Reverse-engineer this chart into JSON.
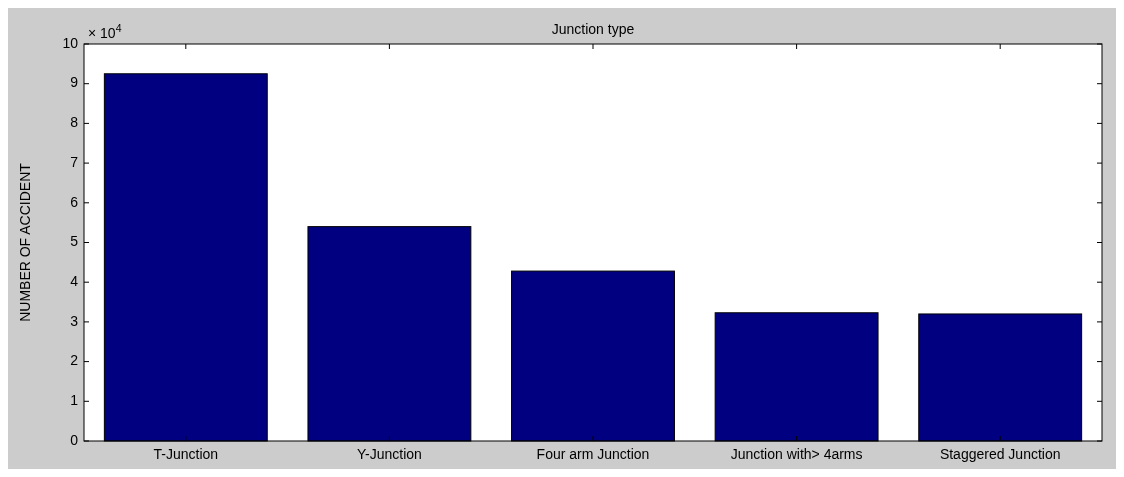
{
  "chart_data": {
    "type": "bar",
    "title": "Junction type",
    "ylabel": "NUMBER OF ACCIDENT",
    "categories": [
      "T-Junction",
      "Y-Junction",
      "Four arm Junction",
      "Junction with> 4arms",
      "Staggered Junction"
    ],
    "values": [
      9.25,
      5.4,
      4.28,
      3.23,
      3.2
    ],
    "color": "#000080",
    "ylim": [
      0,
      10
    ],
    "yticks": [
      0,
      1,
      2,
      3,
      4,
      5,
      6,
      7,
      8,
      9,
      10
    ],
    "annotations": [
      "× 10$^{4}$"
    ],
    "grid": false
  }
}
